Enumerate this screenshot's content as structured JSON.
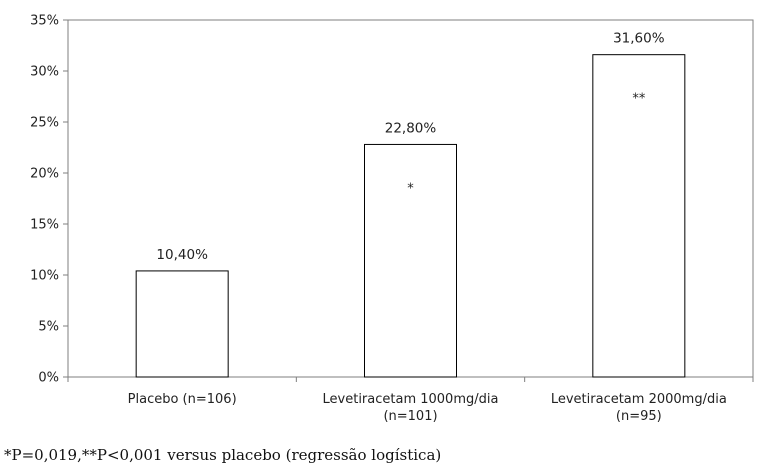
{
  "chart_data": {
    "type": "bar",
    "categories": [
      [
        "Placebo (n=106)"
      ],
      [
        "Levetiracetam 1000mg/dia",
        "(n=101)"
      ],
      [
        "Levetiracetam 2000mg/dia",
        "(n=95)"
      ]
    ],
    "values": [
      10.4,
      22.8,
      31.6
    ],
    "data_labels": [
      "10,40%",
      "22,80%",
      "31,60%"
    ],
    "significance_labels": [
      "",
      "*",
      "**"
    ],
    "y_ticks": [
      "0%",
      "5%",
      "10%",
      "15%",
      "20%",
      "25%",
      "30%",
      "35%"
    ],
    "ylim": [
      0,
      35
    ],
    "y_tick_step": 5,
    "title": "",
    "xlabel": "",
    "ylabel": "",
    "grid": false,
    "bar_fill": "#ffffff",
    "bar_stroke": "#000000",
    "axis_color": "#7f7f7f"
  },
  "footnote": "*P=0,019,**P<0,001 versus placebo (regressão logística)"
}
